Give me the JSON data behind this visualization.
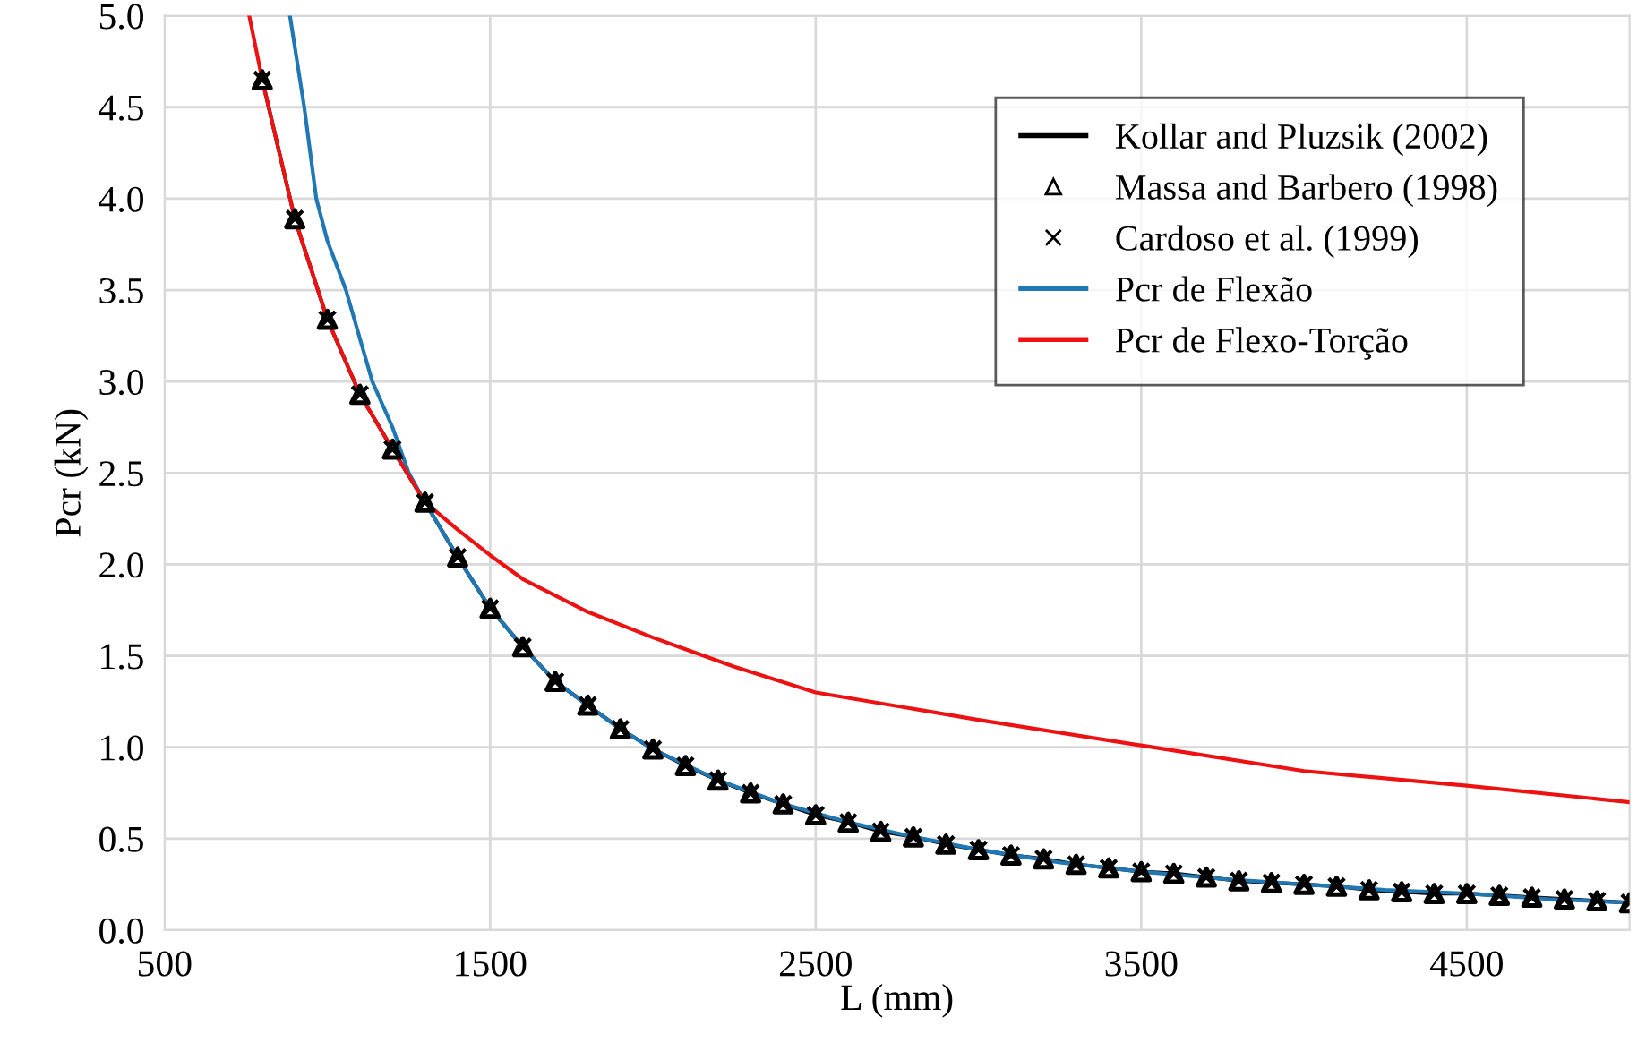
{
  "chart_data": {
    "type": "line",
    "xlabel": "L (mm)",
    "ylabel": "Pcr (kN)",
    "xlim": [
      500,
      5000
    ],
    "xticks": [
      500,
      1500,
      2500,
      3500,
      4500
    ],
    "ylim": [
      0,
      5
    ],
    "yticks": [
      {
        "value": 0,
        "label": "0.0"
      },
      {
        "value": 0.5,
        "label": "0.5"
      },
      {
        "value": 1,
        "label": "1.0"
      },
      {
        "value": 1.5,
        "label": "1.5"
      },
      {
        "value": 2,
        "label": "2.0"
      },
      {
        "value": 2.5,
        "label": "2.5"
      },
      {
        "value": 3,
        "label": "3.0"
      },
      {
        "value": 3.5,
        "label": "3.5"
      },
      {
        "value": 4,
        "label": "4.0"
      },
      {
        "value": 4.5,
        "label": "4.5"
      },
      {
        "value": 5,
        "label": "5.0"
      }
    ],
    "grid": true,
    "legend": "top right",
    "x": [
      800,
      900,
      1000,
      1100,
      1200,
      1300,
      1400,
      1500,
      1600,
      1700,
      1800,
      1900,
      2000,
      2100,
      2200,
      2300,
      2400,
      2500,
      2600,
      2700,
      2800,
      2900,
      3000,
      3100,
      3200,
      3300,
      3400,
      3500,
      3600,
      3700,
      3800,
      3900,
      4000,
      4100,
      4200,
      4300,
      4400,
      4500,
      4600,
      4700,
      4800,
      4900,
      5000
    ],
    "series": [
      {
        "name": "Kollar and Pluzsik (2002)",
        "color": "#000000",
        "marker": "none",
        "values": [
          4.65,
          3.89,
          3.34,
          2.93,
          2.63,
          2.34,
          2.04,
          1.76,
          1.55,
          1.36,
          1.23,
          1.1,
          0.99,
          0.9,
          0.82,
          0.75,
          0.69,
          0.63,
          0.59,
          0.54,
          0.51,
          0.47,
          0.44,
          0.41,
          0.39,
          0.36,
          0.34,
          0.32,
          0.31,
          0.29,
          0.27,
          0.26,
          0.25,
          0.24,
          0.22,
          0.21,
          0.2,
          0.2,
          0.19,
          0.18,
          0.17,
          0.16,
          0.15
        ]
      },
      {
        "name": "Massa and Barbero (1998)",
        "type": "scatter",
        "color": "#000000",
        "marker": "triangle",
        "values": [
          4.65,
          3.89,
          3.34,
          2.93,
          2.63,
          2.34,
          2.04,
          1.76,
          1.55,
          1.36,
          1.23,
          1.1,
          0.99,
          0.9,
          0.82,
          0.75,
          0.69,
          0.63,
          0.59,
          0.54,
          0.51,
          0.47,
          0.44,
          0.41,
          0.39,
          0.36,
          0.34,
          0.32,
          0.31,
          0.29,
          0.27,
          0.26,
          0.25,
          0.24,
          0.22,
          0.21,
          0.2,
          0.2,
          0.19,
          0.18,
          0.17,
          0.16,
          0.15
        ]
      },
      {
        "name": "Cardoso et al. (1999)",
        "type": "scatter",
        "color": "#000000",
        "marker": "cross",
        "values": [
          4.65,
          3.89,
          3.34,
          2.93,
          2.63,
          2.34,
          2.04,
          1.76,
          1.55,
          1.36,
          1.23,
          1.1,
          0.99,
          0.9,
          0.82,
          0.75,
          0.69,
          0.63,
          0.59,
          0.54,
          0.51,
          0.47,
          0.44,
          0.41,
          0.39,
          0.36,
          0.34,
          0.32,
          0.31,
          0.29,
          0.27,
          0.26,
          0.25,
          0.24,
          0.22,
          0.21,
          0.2,
          0.2,
          0.19,
          0.18,
          0.17,
          0.16,
          0.15
        ]
      },
      {
        "name": "Pcr de Flexão",
        "color": "#1f77b4",
        "marker": "none",
        "x": [
          885,
          929,
          966,
          1000,
          1057,
          1138,
          1200,
          1250,
          1300,
          1400,
          1500,
          1600,
          1700,
          1800,
          1900,
          2000,
          2200,
          2400,
          2600,
          2800,
          3000,
          3250,
          3500,
          3750,
          4000,
          4250,
          4500,
          4750,
          5000
        ],
        "values": [
          5.0,
          4.5,
          4.0,
          3.77,
          3.5,
          3.0,
          2.75,
          2.5,
          2.34,
          2.04,
          1.76,
          1.55,
          1.36,
          1.23,
          1.1,
          0.99,
          0.82,
          0.69,
          0.59,
          0.51,
          0.44,
          0.37,
          0.32,
          0.28,
          0.25,
          0.22,
          0.2,
          0.17,
          0.15
        ]
      },
      {
        "name": "Pcr de Flexo-Torção",
        "color": "#ee1111",
        "marker": "none",
        "x": [
          760,
          800,
          900,
          1000,
          1100,
          1200,
          1300,
          1400,
          1500,
          1600,
          1800,
          2000,
          2250,
          2500,
          3000,
          3500,
          4000,
          4500,
          5000
        ],
        "values": [
          5.0,
          4.65,
          3.89,
          3.34,
          2.93,
          2.63,
          2.34,
          2.19,
          2.05,
          1.92,
          1.74,
          1.6,
          1.44,
          1.3,
          1.15,
          1.01,
          0.87,
          0.79,
          0.7
        ]
      }
    ]
  }
}
